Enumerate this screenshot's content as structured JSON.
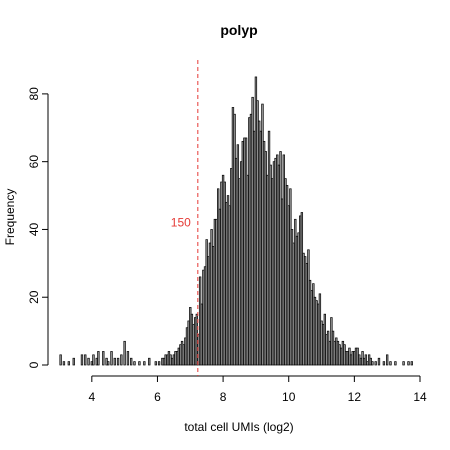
{
  "chart_data": {
    "type": "bar",
    "title": "polyp",
    "xlabel": "total cell UMIs (log2)",
    "ylabel": "Frequency",
    "xlim": [
      3,
      14
    ],
    "ylim": [
      0,
      90
    ],
    "xticks": [
      4,
      6,
      8,
      10,
      12,
      14
    ],
    "yticks": [
      0,
      20,
      40,
      60,
      80
    ],
    "bin_width": 0.05,
    "grid": false,
    "bar_fill": "#9a9a9a",
    "bar_stroke": "#000000",
    "threshold": {
      "x": 7.23,
      "label": "150",
      "color": "#e53935"
    },
    "bins": [
      [
        3.05,
        3
      ],
      [
        3.15,
        1
      ],
      [
        3.3,
        1
      ],
      [
        3.45,
        2
      ],
      [
        3.7,
        3
      ],
      [
        3.8,
        3
      ],
      [
        3.9,
        2
      ],
      [
        4.0,
        1
      ],
      [
        4.05,
        3
      ],
      [
        4.15,
        2
      ],
      [
        4.2,
        4
      ],
      [
        4.35,
        4
      ],
      [
        4.45,
        2
      ],
      [
        4.5,
        1
      ],
      [
        4.6,
        4
      ],
      [
        4.7,
        2
      ],
      [
        4.8,
        2
      ],
      [
        4.9,
        3
      ],
      [
        5.0,
        7
      ],
      [
        5.1,
        4
      ],
      [
        5.2,
        2
      ],
      [
        5.3,
        1
      ],
      [
        5.45,
        1
      ],
      [
        5.6,
        1
      ],
      [
        5.75,
        2
      ],
      [
        5.95,
        1
      ],
      [
        6.05,
        1
      ],
      [
        6.15,
        2
      ],
      [
        6.2,
        2
      ],
      [
        6.25,
        3
      ],
      [
        6.3,
        3
      ],
      [
        6.35,
        4
      ],
      [
        6.4,
        3
      ],
      [
        6.45,
        2
      ],
      [
        6.5,
        3
      ],
      [
        6.55,
        4
      ],
      [
        6.6,
        4
      ],
      [
        6.65,
        5
      ],
      [
        6.7,
        6
      ],
      [
        6.75,
        7
      ],
      [
        6.8,
        6
      ],
      [
        6.85,
        8
      ],
      [
        6.9,
        11
      ],
      [
        6.95,
        13
      ],
      [
        7.0,
        17
      ],
      [
        7.05,
        15
      ],
      [
        7.1,
        12
      ],
      [
        7.15,
        14
      ],
      [
        7.2,
        15
      ],
      [
        7.25,
        9
      ],
      [
        7.3,
        26
      ],
      [
        7.35,
        18
      ],
      [
        7.4,
        28
      ],
      [
        7.45,
        29
      ],
      [
        7.5,
        37
      ],
      [
        7.55,
        32
      ],
      [
        7.6,
        36
      ],
      [
        7.65,
        40
      ],
      [
        7.7,
        35
      ],
      [
        7.75,
        43
      ],
      [
        7.8,
        43
      ],
      [
        7.85,
        52
      ],
      [
        7.9,
        46
      ],
      [
        7.95,
        54
      ],
      [
        8.0,
        56
      ],
      [
        8.05,
        54
      ],
      [
        8.1,
        48
      ],
      [
        8.15,
        50
      ],
      [
        8.2,
        47
      ],
      [
        8.25,
        58
      ],
      [
        8.3,
        76
      ],
      [
        8.35,
        74
      ],
      [
        8.4,
        61
      ],
      [
        8.45,
        65
      ],
      [
        8.5,
        55
      ],
      [
        8.55,
        60
      ],
      [
        8.6,
        66
      ],
      [
        8.65,
        67
      ],
      [
        8.7,
        67
      ],
      [
        8.75,
        56
      ],
      [
        8.8,
        73
      ],
      [
        8.85,
        74
      ],
      [
        8.9,
        79
      ],
      [
        8.95,
        69
      ],
      [
        9.0,
        85
      ],
      [
        9.05,
        78
      ],
      [
        9.1,
        72
      ],
      [
        9.15,
        69
      ],
      [
        9.2,
        77
      ],
      [
        9.25,
        66
      ],
      [
        9.3,
        63
      ],
      [
        9.35,
        56
      ],
      [
        9.4,
        69
      ],
      [
        9.45,
        59
      ],
      [
        9.5,
        55
      ],
      [
        9.55,
        60
      ],
      [
        9.6,
        61
      ],
      [
        9.65,
        62
      ],
      [
        9.7,
        59
      ],
      [
        9.75,
        63
      ],
      [
        9.8,
        49
      ],
      [
        9.85,
        62
      ],
      [
        9.9,
        55
      ],
      [
        9.95,
        53
      ],
      [
        10.0,
        47
      ],
      [
        10.05,
        52
      ],
      [
        10.1,
        40
      ],
      [
        10.15,
        36
      ],
      [
        10.2,
        43
      ],
      [
        10.25,
        38
      ],
      [
        10.3,
        39
      ],
      [
        10.35,
        44
      ],
      [
        10.4,
        45
      ],
      [
        10.45,
        33
      ],
      [
        10.5,
        32
      ],
      [
        10.55,
        30
      ],
      [
        10.6,
        34
      ],
      [
        10.65,
        25
      ],
      [
        10.7,
        22
      ],
      [
        10.75,
        24
      ],
      [
        10.8,
        20
      ],
      [
        10.85,
        19
      ],
      [
        10.9,
        18
      ],
      [
        10.95,
        21
      ],
      [
        11.0,
        13
      ],
      [
        11.05,
        12
      ],
      [
        11.1,
        15
      ],
      [
        11.15,
        9
      ],
      [
        11.2,
        10
      ],
      [
        11.25,
        7
      ],
      [
        11.3,
        14
      ],
      [
        11.35,
        10
      ],
      [
        11.4,
        7
      ],
      [
        11.45,
        8
      ],
      [
        11.5,
        7
      ],
      [
        11.55,
        6
      ],
      [
        11.6,
        5
      ],
      [
        11.65,
        7
      ],
      [
        11.7,
        6
      ],
      [
        11.75,
        4
      ],
      [
        11.8,
        4
      ],
      [
        11.85,
        5
      ],
      [
        11.9,
        3
      ],
      [
        11.95,
        4
      ],
      [
        12.0,
        4
      ],
      [
        12.05,
        5
      ],
      [
        12.1,
        5
      ],
      [
        12.15,
        3
      ],
      [
        12.2,
        2
      ],
      [
        12.25,
        4
      ],
      [
        12.3,
        2
      ],
      [
        12.35,
        3
      ],
      [
        12.4,
        1
      ],
      [
        12.45,
        3
      ],
      [
        12.5,
        2
      ],
      [
        12.55,
        1
      ],
      [
        12.65,
        1
      ],
      [
        12.75,
        2
      ],
      [
        12.9,
        1
      ],
      [
        13.0,
        3
      ],
      [
        13.1,
        1
      ],
      [
        13.25,
        1
      ],
      [
        13.5,
        1
      ],
      [
        13.65,
        1
      ],
      [
        13.75,
        1
      ]
    ]
  }
}
